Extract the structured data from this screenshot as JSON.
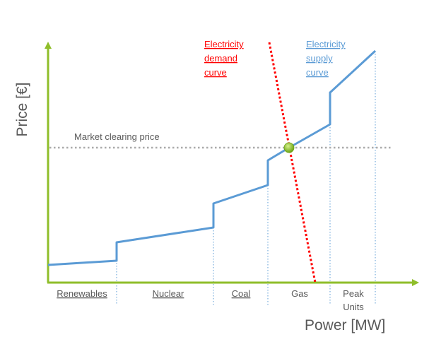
{
  "labels": {
    "y_axis": "Price [€]",
    "x_axis": "Power [MW]",
    "market_clearing": "Market clearing price",
    "demand": [
      "Electricity",
      "demand",
      "curve"
    ],
    "supply": [
      "Electricity",
      "supply",
      "curve"
    ]
  },
  "segments": [
    "Renewables",
    "Nuclear",
    "Coal",
    "Gas",
    "Peak",
    "Units"
  ],
  "colors": {
    "axis": "#8fbe2a",
    "supply": "#5b9bd5",
    "demand": "#ff0000",
    "clearing": "#aaaaaa",
    "intersection": "#92c83e",
    "label_text": "#595959"
  },
  "chart_data": {
    "type": "line",
    "supply_curve_shape": "stepwise-increasing",
    "demand_curve_shape": "steeply-decreasing",
    "segments_order": [
      "Renewables",
      "Nuclear",
      "Coal",
      "Gas",
      "Peak Units"
    ]
  }
}
